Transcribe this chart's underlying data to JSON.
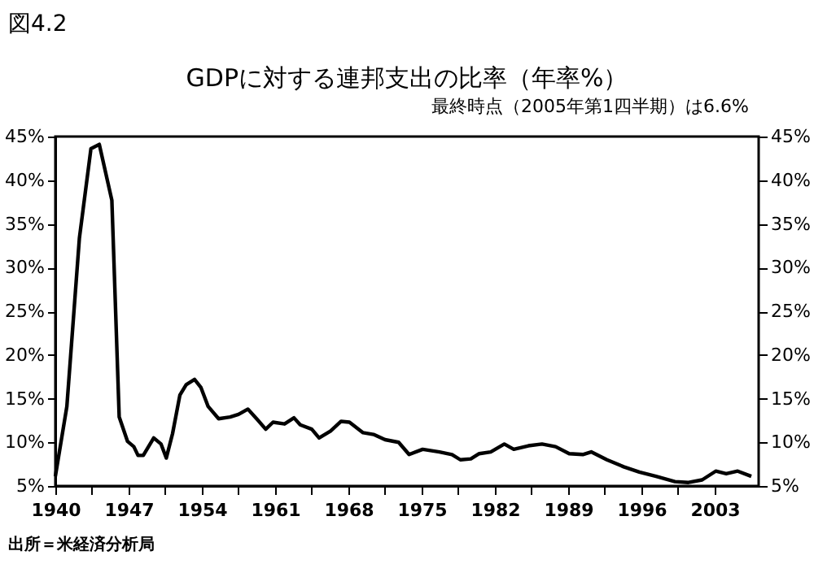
{
  "chart_data": {
    "type": "line",
    "title": "GDPに対する連邦支出の比率（年率%）",
    "annotations": [
      "図4.2",
      "最終時点（2005年第1四半期）は6.6%",
      "出所＝米経済分析局"
    ],
    "x": [
      1940,
      1941.1,
      1942.3,
      1943.4,
      1944.2,
      1945.4,
      1946.1,
      1946.9,
      1947.5,
      1947.9,
      1948.4,
      1949.4,
      1950.1,
      1950.6,
      1951.2,
      1951.9,
      1952.5,
      1953.3,
      1953.9,
      1954.6,
      1955.6,
      1956.7,
      1957.5,
      1958.4,
      1959.3,
      1960.1,
      1960.8,
      1961.9,
      1962.8,
      1963.4,
      1964.5,
      1965.2,
      1966.3,
      1967.3,
      1968.1,
      1969.4,
      1970.4,
      1971.5,
      1972.8,
      1973.8,
      1975.1,
      1976.7,
      1977.9,
      1978.7,
      1979.7,
      1980.5,
      1981.6,
      1982.9,
      1983.8,
      1985.2,
      1986.5,
      1987.8,
      1989.1,
      1990.4,
      1991.2,
      1992.7,
      1994.3,
      1995.8,
      1997.4,
      1999.2,
      2000.5,
      2001.8,
      2003.1,
      2004.1,
      2005.2,
      2006.5
    ],
    "series": [
      {
        "color": "#000000",
        "values": [
          6.1,
          14.1,
          33.4,
          43.6,
          44.1,
          37.7,
          12.9,
          10.1,
          9.5,
          8.5,
          8.5,
          10.5,
          9.8,
          8.2,
          11.0,
          15.4,
          16.6,
          17.2,
          16.3,
          14.1,
          12.7,
          12.9,
          13.2,
          13.8,
          12.6,
          11.5,
          12.3,
          12.1,
          12.8,
          12.0,
          11.5,
          10.5,
          11.3,
          12.4,
          12.3,
          11.1,
          10.9,
          10.3,
          10.0,
          8.6,
          9.2,
          8.9,
          8.6,
          8.0,
          8.1,
          8.7,
          8.9,
          9.8,
          9.2,
          9.6,
          9.8,
          9.5,
          8.7,
          8.6,
          8.9,
          8.0,
          7.2,
          6.6,
          6.1,
          5.5,
          5.4,
          5.7,
          6.7,
          6.4,
          6.7,
          6.1
        ]
      }
    ],
    "xlim": [
      1940,
      2007.2
    ],
    "xticks": [
      1940,
      {
        "value": 1943.5,
        "label": null
      },
      1947,
      {
        "value": 1950.5,
        "label": null
      },
      1954,
      {
        "value": 1957.5,
        "label": null
      },
      1961,
      {
        "value": 1964.5,
        "label": null
      },
      1968,
      {
        "value": 1971.5,
        "label": null
      },
      1975,
      {
        "value": 1978.5,
        "label": null
      },
      1982,
      {
        "value": 1985.5,
        "label": null
      },
      1989,
      {
        "value": 1992.5,
        "label": null
      },
      1996,
      {
        "value": 1999.5,
        "label": null
      },
      2003
    ],
    "ylim": [
      5,
      45
    ],
    "yticks": [
      {
        "value": 5,
        "label": "5%"
      },
      {
        "value": 10,
        "label": "10%"
      },
      {
        "value": 15,
        "label": "15%"
      },
      {
        "value": 20,
        "label": "20%"
      },
      {
        "value": 25,
        "label": "25%"
      },
      {
        "value": 30,
        "label": "30%"
      },
      {
        "value": 35,
        "label": "35%"
      },
      {
        "value": 40,
        "label": "40%"
      },
      {
        "value": 45,
        "label": "45%"
      }
    ],
    "y2lim": [
      5,
      45
    ],
    "y2ticks": [
      {
        "value": 5,
        "label": "5%"
      },
      {
        "value": 10,
        "label": "10%"
      },
      {
        "value": 15,
        "label": "15%"
      },
      {
        "value": 20,
        "label": "20%"
      },
      {
        "value": 25,
        "label": "25%"
      },
      {
        "value": 30,
        "label": "30%"
      },
      {
        "value": 35,
        "label": "35%"
      },
      {
        "value": 40,
        "label": "40%"
      },
      {
        "value": 45,
        "label": "45%"
      }
    ],
    "line_style": "solid"
  }
}
